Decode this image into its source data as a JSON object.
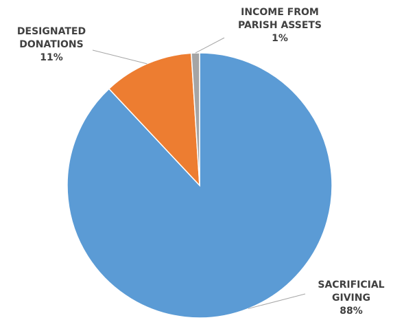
{
  "chart_data": {
    "type": "pie",
    "title": "",
    "slices": [
      {
        "name": "SACRIFICIAL GIVING",
        "label_lines": [
          "SACRIFICIAL",
          "GIVING"
        ],
        "value": 88,
        "value_label": "88%",
        "color": "#5b9bd5"
      },
      {
        "name": "DESIGNATED DONATIONS",
        "label_lines": [
          "DESIGNATED",
          "DONATIONS"
        ],
        "value": 11,
        "value_label": "11%",
        "color": "#ed7d31"
      },
      {
        "name": "INCOME FROM PARISH ASSETS",
        "label_lines": [
          "INCOME FROM",
          "PARISH ASSETS"
        ],
        "value": 1,
        "value_label": "1%",
        "color": "#a5a5a5"
      }
    ],
    "start_angle_deg": 0,
    "direction": "clockwise",
    "legend": "none",
    "data_labels": "outside-with-leader-lines"
  }
}
